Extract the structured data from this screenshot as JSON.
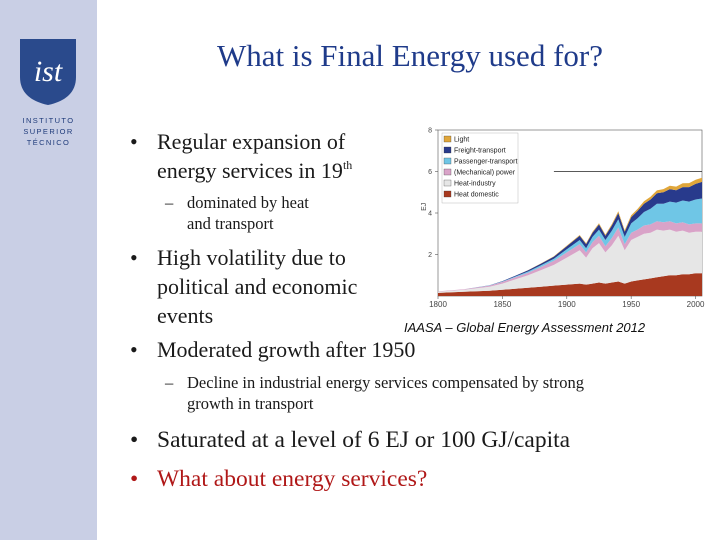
{
  "title": "What is Final Energy used for?",
  "logo": {
    "line1": "INSTITUTO",
    "line2": "SUPERIOR",
    "line3": "TÉCNICO"
  },
  "bullets": [
    {
      "line1": "Regular expansion of",
      "line2": "energy services in 19",
      "sup": "th"
    },
    {
      "line1": "High volatility due to",
      "line2": "political and economic",
      "line3": "events"
    },
    {
      "text": "Moderated growth after 1950"
    },
    {
      "text": "Saturated at a level of 6 EJ or 100 GJ/capita"
    },
    {
      "text": "What about energy services?"
    }
  ],
  "subbullets": [
    {
      "line1": "dominated by heat",
      "line2": "and transport"
    },
    {
      "line1": "Decline in industrial energy services compensated by strong",
      "line2": "growth in transport"
    }
  ],
  "caption": "IAASA – Global Energy Assessment 2012",
  "colors": {
    "title": "#1f3b8a",
    "sidebar": "#c9cfe5",
    "highlight": "#b01818"
  },
  "chart_data": {
    "type": "area",
    "ylabel": "EJ",
    "xlim": [
      1800,
      2005
    ],
    "ylim": [
      0,
      8
    ],
    "x_ticks": [
      1800,
      1850,
      1900,
      1950,
      2000
    ],
    "y_ticks": [
      2,
      4,
      6,
      8
    ],
    "legend_position": "top-left",
    "x": [
      1800,
      1820,
      1840,
      1850,
      1860,
      1870,
      1880,
      1890,
      1900,
      1910,
      1915,
      1920,
      1925,
      1930,
      1935,
      1940,
      1945,
      1950,
      1955,
      1960,
      1965,
      1970,
      1975,
      1980,
      1985,
      1990,
      1995,
      2000,
      2005
    ],
    "series": [
      {
        "name": "Heat domestic",
        "color": "#a8391f",
        "values": [
          0.15,
          0.2,
          0.25,
          0.3,
          0.35,
          0.4,
          0.45,
          0.5,
          0.55,
          0.6,
          0.55,
          0.6,
          0.65,
          0.6,
          0.65,
          0.7,
          0.6,
          0.7,
          0.75,
          0.8,
          0.85,
          0.9,
          0.95,
          1.0,
          1.0,
          1.05,
          1.05,
          1.1,
          1.1
        ]
      },
      {
        "name": "Heat-industry",
        "color": "#e6e6e6",
        "values": [
          0.05,
          0.1,
          0.2,
          0.3,
          0.45,
          0.6,
          0.8,
          1.0,
          1.3,
          1.6,
          1.3,
          1.7,
          1.9,
          1.5,
          1.8,
          2.2,
          1.6,
          2.0,
          2.1,
          2.2,
          2.2,
          2.3,
          2.2,
          2.2,
          2.1,
          2.1,
          2.0,
          2.0,
          2.0
        ]
      },
      {
        "name": "(Mechanical) power",
        "color": "#d9a3c8",
        "values": [
          0.02,
          0.03,
          0.05,
          0.08,
          0.1,
          0.12,
          0.15,
          0.2,
          0.25,
          0.3,
          0.25,
          0.3,
          0.35,
          0.3,
          0.35,
          0.4,
          0.3,
          0.35,
          0.35,
          0.4,
          0.4,
          0.4,
          0.4,
          0.4,
          0.4,
          0.4,
          0.4,
          0.4,
          0.4
        ]
      },
      {
        "name": "Passenger-transport",
        "color": "#6fc6e6",
        "values": [
          0.0,
          0.0,
          0.01,
          0.02,
          0.04,
          0.06,
          0.08,
          0.1,
          0.15,
          0.2,
          0.2,
          0.25,
          0.3,
          0.3,
          0.35,
          0.4,
          0.35,
          0.45,
          0.55,
          0.65,
          0.75,
          0.85,
          0.9,
          0.95,
          1.0,
          1.05,
          1.1,
          1.15,
          1.2
        ]
      },
      {
        "name": "Freight-transport",
        "color": "#283a8c",
        "values": [
          0.0,
          0.0,
          0.01,
          0.02,
          0.04,
          0.06,
          0.08,
          0.1,
          0.15,
          0.2,
          0.2,
          0.2,
          0.25,
          0.2,
          0.25,
          0.3,
          0.25,
          0.3,
          0.35,
          0.4,
          0.45,
          0.5,
          0.55,
          0.6,
          0.6,
          0.65,
          0.7,
          0.75,
          0.8
        ]
      },
      {
        "name": "Light",
        "color": "#e0a63a",
        "values": [
          0.0,
          0.0,
          0.0,
          0.0,
          0.0,
          0.01,
          0.01,
          0.02,
          0.03,
          0.04,
          0.04,
          0.05,
          0.06,
          0.06,
          0.07,
          0.08,
          0.07,
          0.09,
          0.1,
          0.12,
          0.13,
          0.14,
          0.15,
          0.16,
          0.17,
          0.18,
          0.19,
          0.2,
          0.2
        ]
      }
    ]
  }
}
